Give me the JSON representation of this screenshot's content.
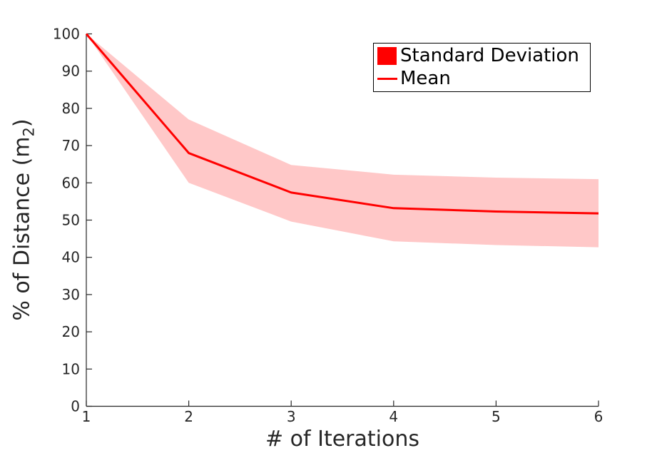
{
  "chart_data": {
    "type": "line",
    "title": "",
    "xlabel": "# of Iterations",
    "ylabel": "% of Distance (m_2)",
    "ylabel_parts": {
      "prefix": "% of Distance (m",
      "subscript": "2",
      "suffix": ")"
    },
    "x": [
      1,
      2,
      3,
      4,
      5,
      6
    ],
    "series": [
      {
        "name": "Mean",
        "type": "line",
        "color": "#ff0000",
        "line_width": 3,
        "values": [
          100,
          68,
          57.4,
          53.2,
          52.3,
          51.8
        ]
      },
      {
        "name": "Standard Deviation",
        "type": "band",
        "color": "#ffc8c8",
        "upper": [
          100,
          77,
          64.8,
          62.2,
          61.4,
          61
        ],
        "lower": [
          100,
          60,
          49.6,
          44.3,
          43.3,
          42.7
        ]
      }
    ],
    "xlim": [
      1,
      6
    ],
    "ylim": [
      0,
      100
    ],
    "xticks": [
      1,
      2,
      3,
      4,
      5,
      6
    ],
    "yticks": [
      0,
      10,
      20,
      30,
      40,
      50,
      60,
      70,
      80,
      90,
      100
    ],
    "grid": false,
    "axis_color": "#262626",
    "legend_position": "upper-right-inside"
  },
  "legend": {
    "items": [
      {
        "label": "Standard Deviation",
        "swatch": "filled-square",
        "color": "#ff0000"
      },
      {
        "label": "Mean",
        "swatch": "line",
        "color": "#ff0000"
      }
    ]
  }
}
